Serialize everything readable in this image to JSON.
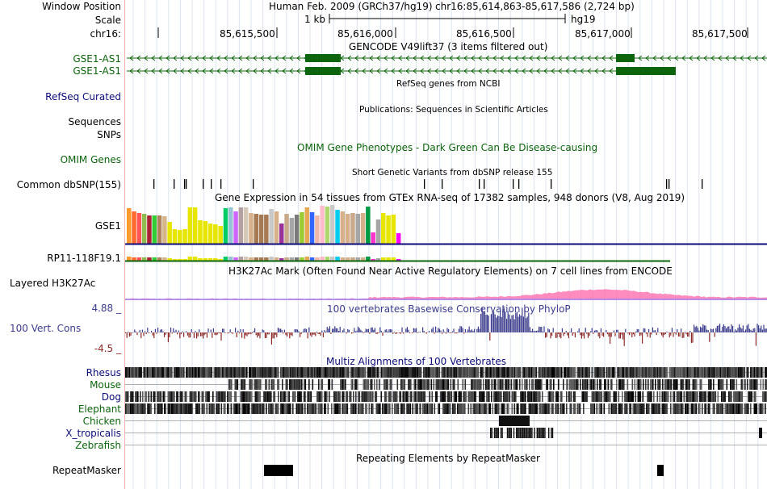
{
  "labels": {
    "window_position": "Window Position",
    "scale": "Scale",
    "chrom": "chr16:",
    "gene1": "GSE1-AS1",
    "gene2": "GSE1-AS1",
    "refseq": "RefSeq Curated",
    "sequences": "Sequences",
    "snps": "SNPs",
    "omim": "OMIM Genes",
    "dbsnp": "Common dbSNP(155)",
    "gse1": "GSE1",
    "rp11": "RP11-118F19.1",
    "h3k27ac": "Layered H3K27Ac",
    "cons_max": "4.88 _",
    "cons": "100 Vert. Cons",
    "cons_min": "-4.5 _",
    "species": [
      "Rhesus",
      "Mouse",
      "Dog",
      "Elephant",
      "Chicken",
      "X_tropicalis",
      "Zebrafish"
    ],
    "repeatmasker": "RepeatMasker"
  },
  "titles": {
    "assembly": "Human Feb. 2009 (GRCh37/hg19)",
    "position": "chr16:85,614,863-85,617,586 (2,724 bp)",
    "scale_text": "1 kb",
    "scale_db": "hg19",
    "gencode": "GENCODE V49lift37 (3 items filtered out)",
    "refseq": "RefSeq genes from NCBI",
    "publications": "Publications: Sequences in Scientific Articles",
    "omim": "OMIM Gene Phenotypes - Dark Green Can Be Disease-causing",
    "dbsnp": "Short Genetic Variants from dbSNP release 155",
    "gtex": "Gene Expression in 54 tissues from GTEx RNA-seq of 17382 samples, 948 donors (V8, Aug 2019)",
    "h3k27ac": "H3K27Ac Mark (Often Found Near Active Regulatory Elements) on 7 cell lines from ENCODE",
    "phylop": "100 vertebrates Basewise Conservation by PhyloP",
    "multiz": "Multiz Alignments of 100 Vertebrates",
    "repeatmasker": "Repeating Elements by RepeatMasker"
  },
  "ruler": [
    "85,615,500",
    "85,616,000",
    "85,616,500",
    "85,617,000",
    "85,617,500"
  ],
  "colors": {
    "gene": "#0c640c",
    "refseq_label": "#0c0c78",
    "cons": "#3c3c8c",
    "cons_neg": "#8c2828",
    "omim": "#0c640c",
    "grid": "#dde4ee"
  },
  "gtex_colors": [
    "#ff9a2e",
    "#ff6a2e",
    "#ff5555",
    "#8fbb4f",
    "#aa2233",
    "#33cc33",
    "#b0845b",
    "#d6b58b",
    "#e6e600",
    "#e6e600",
    "#e6e600",
    "#e6e600",
    "#e6e600",
    "#e6e600",
    "#e6e600",
    "#e6e600",
    "#e6e600",
    "#e6e600",
    "#e6e600",
    "#00cc66",
    "#99c2d6",
    "#cc66ff",
    "#b3a1a1",
    "#d6c8b8",
    "#d6b08b",
    "#a57a54",
    "#a57a54",
    "#a57a54",
    "#c8c8c8",
    "#d6b08b",
    "#993399",
    "#c8aa8b",
    "#a6a6a6",
    "#7a7a7a",
    "#99cc33",
    "#e6aa55",
    "#3366ff",
    "#f0b8a8",
    "#ffbbcc",
    "#b0d66e",
    "#c8c8c8",
    "#00ccee",
    "#d6b08b",
    "#d6b08b",
    "#c8aa8b",
    "#a6a6a6",
    "#d6b08b",
    "#009944",
    "#ff33cc",
    "#a6a6a6",
    "#e6e600",
    "#e6e600",
    "#e6e600",
    "#ff00ff"
  ],
  "gtex_values": [
    44,
    40,
    38,
    37,
    35,
    35,
    35,
    34,
    27,
    18,
    17,
    18,
    45,
    45,
    29,
    28,
    25,
    24,
    22,
    44,
    45,
    40,
    45,
    45,
    38,
    37,
    36,
    36,
    43,
    40,
    25,
    37,
    32,
    36,
    39,
    45,
    39,
    35,
    47,
    46,
    48,
    42,
    40,
    37,
    38,
    37,
    38,
    46,
    14,
    30,
    38,
    35,
    36,
    13
  ]
}
